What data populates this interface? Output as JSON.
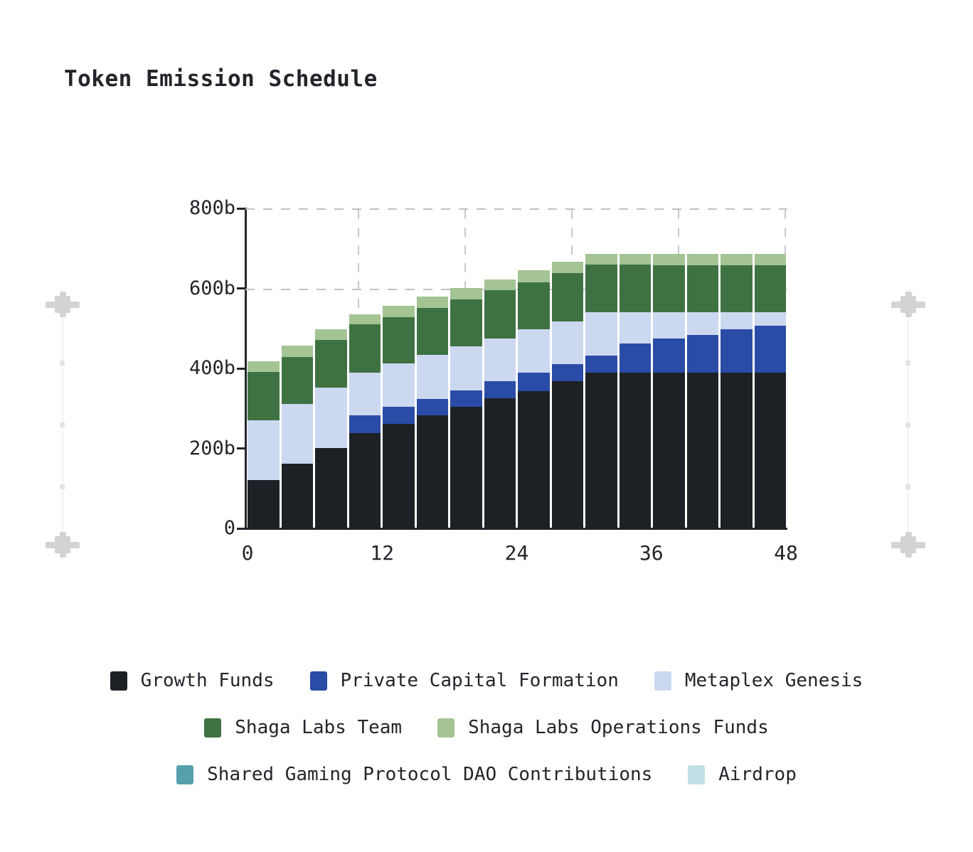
{
  "page_title": "Token Emission Schedule",
  "chart_data": {
    "type": "bar",
    "stacked": true,
    "title": "Token Emission Schedule",
    "x_unit": "months",
    "y_unit": "tokens (billions, shown as b)",
    "ylim": [
      0,
      800
    ],
    "y_tick_labels": [
      "800b",
      "600b",
      "400b",
      "200b",
      "0"
    ],
    "y_tick_values": [
      800,
      600,
      400,
      200,
      0
    ],
    "x_tick_labels": [
      "0",
      "12",
      "24",
      "36",
      "48"
    ],
    "x_tick_values": [
      0,
      12,
      24,
      36,
      48
    ],
    "bar_start_months": [
      0,
      3,
      6,
      9,
      12,
      15,
      18,
      21,
      24,
      27,
      30,
      33,
      36,
      39,
      42,
      45
    ],
    "grid": {
      "h_dashed_at_values": [
        800,
        600
      ],
      "v_fractions": [
        0.205,
        0.403,
        0.601,
        0.799,
        0.997
      ],
      "style": "dashed"
    },
    "legend_position": "bottom",
    "series": [
      {
        "name": "Growth Funds",
        "color": "#1d2024",
        "values": [
          121,
          161,
          201,
          239,
          261,
          283,
          304,
          325,
          344,
          368,
          390,
          390,
          390,
          390,
          390,
          390
        ]
      },
      {
        "name": "Private Capital Formation",
        "color": "#2a4ba6",
        "values": [
          0,
          0,
          0,
          44,
          43,
          41,
          41,
          43,
          46,
          42,
          42,
          72,
          85,
          93,
          108,
          117
        ]
      },
      {
        "name": "Metaplex Genesis",
        "color": "#ccd8f0",
        "values": [
          150,
          150,
          151,
          107,
          109,
          109,
          110,
          107,
          107,
          108,
          108,
          78,
          65,
          57,
          42,
          33
        ]
      },
      {
        "name": "Shaga Labs Team",
        "color": "#3f7243",
        "values": [
          120,
          118,
          119,
          120,
          115,
          118,
          117,
          120,
          118,
          121,
          120,
          120,
          118,
          118,
          118,
          118
        ]
      },
      {
        "name": "Shaga Labs Operations Funds",
        "color": "#a4c494",
        "values": [
          27,
          28,
          27,
          26,
          28,
          29,
          29,
          28,
          30,
          27,
          26,
          26,
          28,
          28,
          28,
          28
        ]
      },
      {
        "name": "Shared Gaming Protocol DAO Contributions",
        "color": "#56a0ab",
        "values": [
          0,
          0,
          0,
          0,
          0,
          0,
          0,
          0,
          0,
          0,
          0,
          0,
          0,
          0,
          0,
          0
        ]
      },
      {
        "name": "Airdrop",
        "color": "#c3dfe6",
        "values": [
          0,
          0,
          0,
          0,
          0,
          0,
          0,
          0,
          0,
          0,
          0,
          0,
          0,
          0,
          0,
          0
        ]
      }
    ]
  },
  "legend_rows": [
    [
      "Growth Funds",
      "Private Capital Formation",
      "Metaplex Genesis"
    ],
    [
      "Shaga Labs Team",
      "Shaga Labs Operations Funds"
    ],
    [
      "Shared Gaming Protocol DAO Contributions",
      "Airdrop"
    ]
  ],
  "colors": {
    "axis": "#23262b",
    "gridline": "#c2c6ca",
    "background": "#ffffff",
    "decoration": "#d2d4d4"
  }
}
